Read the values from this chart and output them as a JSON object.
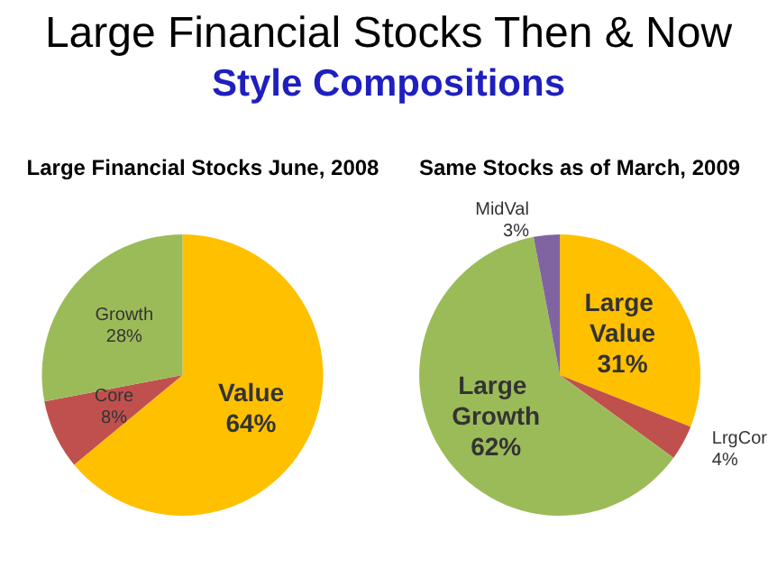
{
  "chart_data": [
    {
      "type": "other",
      "title": "Large Financial Stocks Then & Now",
      "subtitle": "Style Compositions"
    },
    {
      "type": "pie",
      "title": "Large Financial Stocks June, 2008",
      "categories": [
        "Value",
        "Core",
        "Growth"
      ],
      "values": [
        64,
        8,
        28
      ],
      "value_labels": [
        "64%",
        "8%",
        "28%"
      ],
      "colors": [
        "#ffc000",
        "#c0504d",
        "#9bbb59"
      ]
    },
    {
      "type": "pie",
      "title": "Same Stocks as of March, 2009",
      "categories": [
        "Large Value",
        "LrgCor",
        "Large Growth",
        "MidVal"
      ],
      "values": [
        31,
        4,
        62,
        3
      ],
      "value_labels": [
        "31%",
        "4%",
        "62%",
        "3%"
      ],
      "colors": [
        "#ffc000",
        "#c0504d",
        "#9bbb59",
        "#8064a2"
      ]
    }
  ]
}
